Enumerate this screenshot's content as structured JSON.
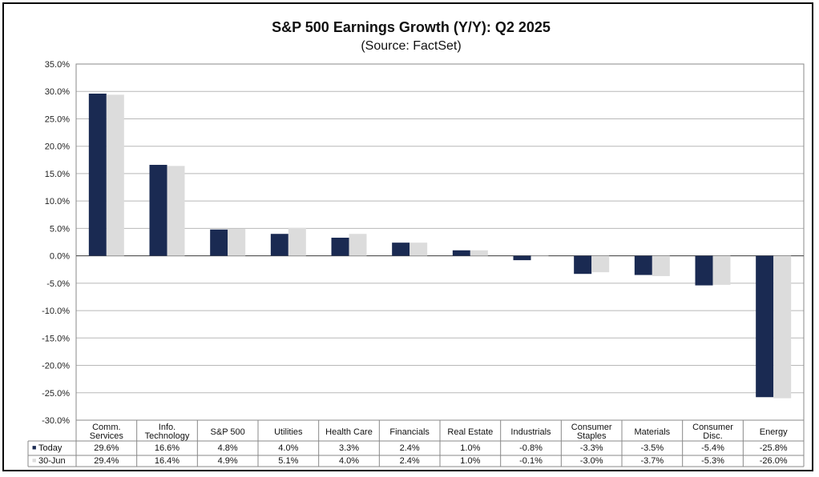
{
  "chart_data": {
    "type": "bar",
    "title": "S&P 500 Earnings Growth (Y/Y): Q2 2025",
    "subtitle": "(Source: FactSet)",
    "ylim": [
      -30,
      35
    ],
    "ytick_step": 5,
    "ytick_labels": [
      "35.0%",
      "30.0%",
      "25.0%",
      "20.0%",
      "15.0%",
      "10.0%",
      "5.0%",
      "0.0%",
      "-5.0%",
      "-10.0%",
      "-15.0%",
      "-20.0%",
      "-25.0%",
      "-30.0%"
    ],
    "categories": [
      [
        "Comm.",
        "Services"
      ],
      [
        "Info.",
        "Technology"
      ],
      [
        "S&P 500"
      ],
      [
        "Utilities"
      ],
      [
        "Health Care"
      ],
      [
        "Financials"
      ],
      [
        "Real Estate"
      ],
      [
        "Industrials"
      ],
      [
        "Consumer",
        "Staples"
      ],
      [
        "Materials"
      ],
      [
        "Consumer",
        "Disc."
      ],
      [
        "Energy"
      ]
    ],
    "series": [
      {
        "name": "Today",
        "legend_marker": "■",
        "color": "#1a2a52",
        "values": [
          29.6,
          16.6,
          4.8,
          4.0,
          3.3,
          2.4,
          1.0,
          -0.8,
          -3.3,
          -3.5,
          -5.4,
          -25.8
        ],
        "labels": [
          "29.6%",
          "16.6%",
          "4.8%",
          "4.0%",
          "3.3%",
          "2.4%",
          "1.0%",
          "-0.8%",
          "-3.3%",
          "-3.5%",
          "-5.4%",
          "-25.8%"
        ]
      },
      {
        "name": "30-Jun",
        "legend_marker": "■",
        "color": "#dcdcdc",
        "values": [
          29.4,
          16.4,
          4.9,
          5.1,
          4.0,
          2.4,
          1.0,
          -0.1,
          -3.0,
          -3.7,
          -5.3,
          -26.0
        ],
        "labels": [
          "29.4%",
          "16.4%",
          "4.9%",
          "5.1%",
          "4.0%",
          "2.4%",
          "1.0%",
          "-0.1%",
          "-3.0%",
          "-3.7%",
          "-5.3%",
          "-26.0%"
        ]
      }
    ],
    "grid": true,
    "legend": "data-table-left"
  }
}
